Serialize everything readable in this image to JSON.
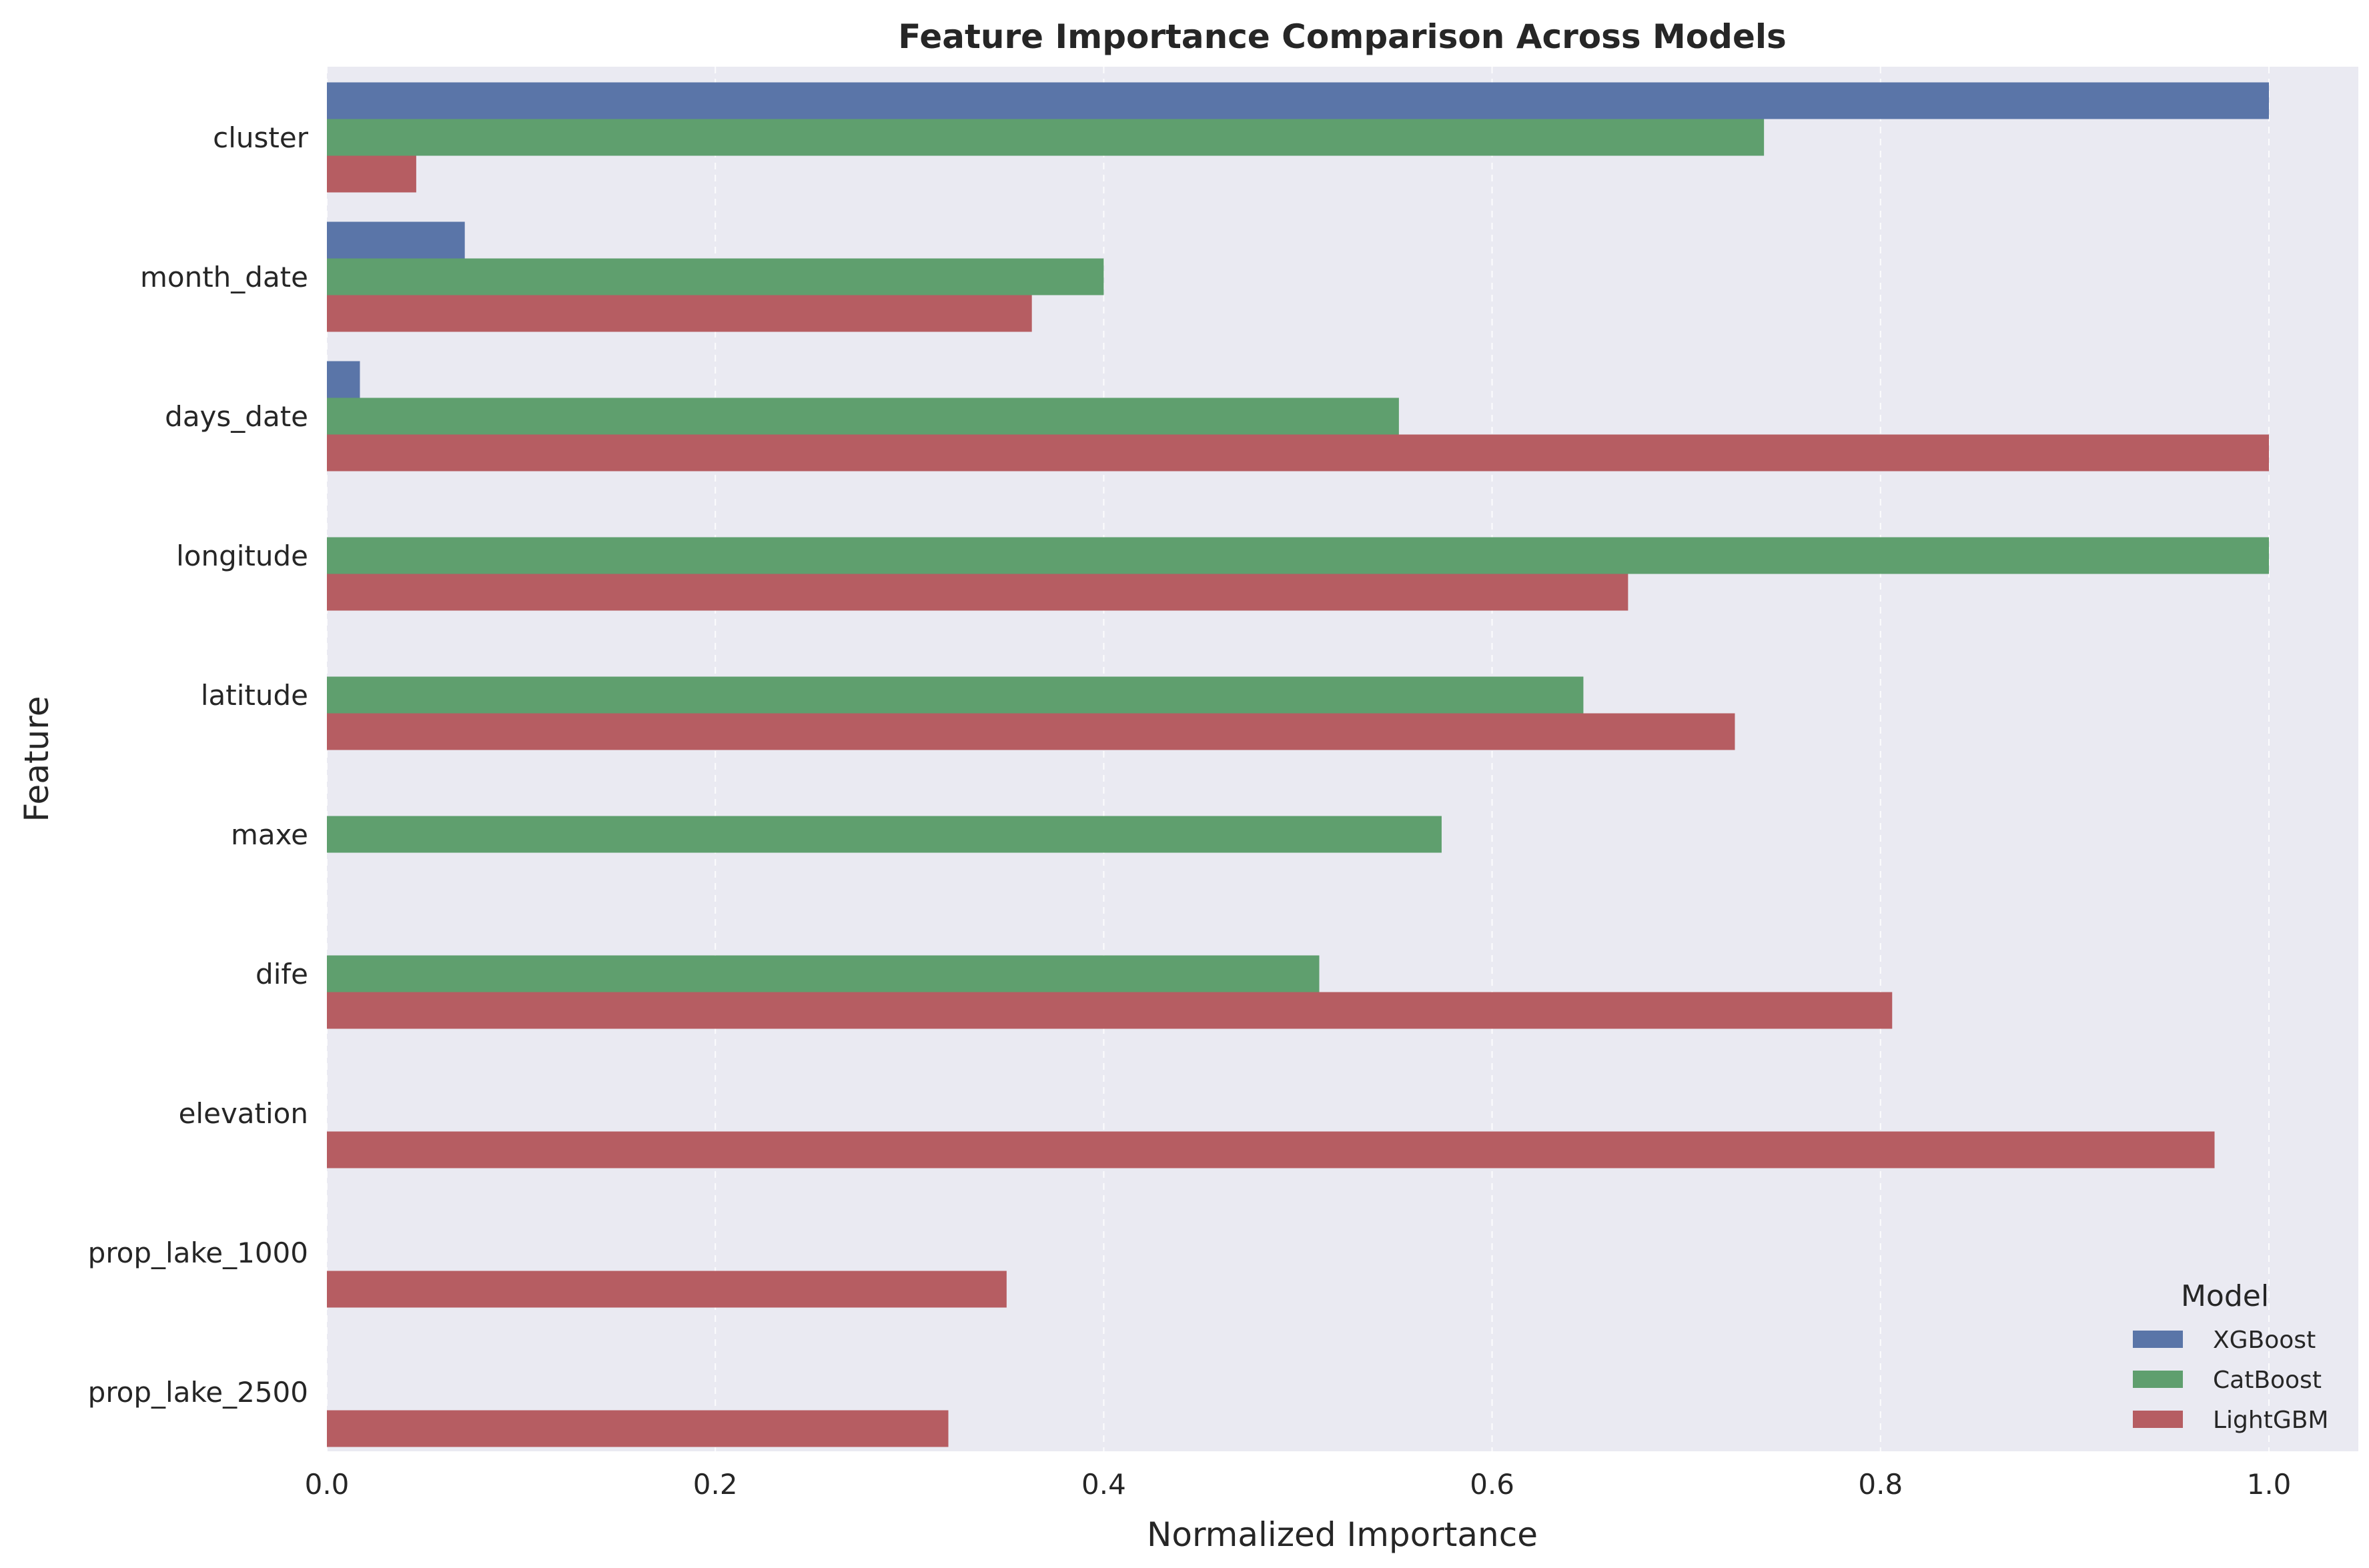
{
  "chart_data": {
    "type": "bar",
    "orientation": "horizontal",
    "title": "Feature Importance Comparison Across Models",
    "xlabel": "Normalized Importance",
    "ylabel": "Feature",
    "xlim": [
      0,
      1.05
    ],
    "xticks": [
      0.0,
      0.2,
      0.4,
      0.6,
      0.8,
      1.0
    ],
    "xtick_labels": [
      "0.0",
      "0.2",
      "0.4",
      "0.6",
      "0.8",
      "1.0"
    ],
    "grid": "x-dashed",
    "categories": [
      "cluster",
      "month_date",
      "days_date",
      "longitude",
      "latitude",
      "maxe",
      "dife",
      "elevation",
      "prop_lake_1000",
      "prop_lake_2500"
    ],
    "series": [
      {
        "name": "XGBoost",
        "color": "#5a75a8",
        "values": [
          1.0,
          0.071,
          0.017,
          null,
          null,
          null,
          null,
          null,
          null,
          null
        ]
      },
      {
        "name": "CatBoost",
        "color": "#5f9f6e",
        "values": [
          0.74,
          0.4,
          0.552,
          1.0,
          0.647,
          0.574,
          0.511,
          null,
          null,
          null
        ]
      },
      {
        "name": "LightGBM",
        "color": "#b65d62",
        "values": [
          0.046,
          0.363,
          1.0,
          0.67,
          0.725,
          null,
          0.806,
          0.972,
          0.35,
          0.32
        ]
      }
    ],
    "legend": {
      "title": "Model",
      "position": "lower-right"
    }
  }
}
